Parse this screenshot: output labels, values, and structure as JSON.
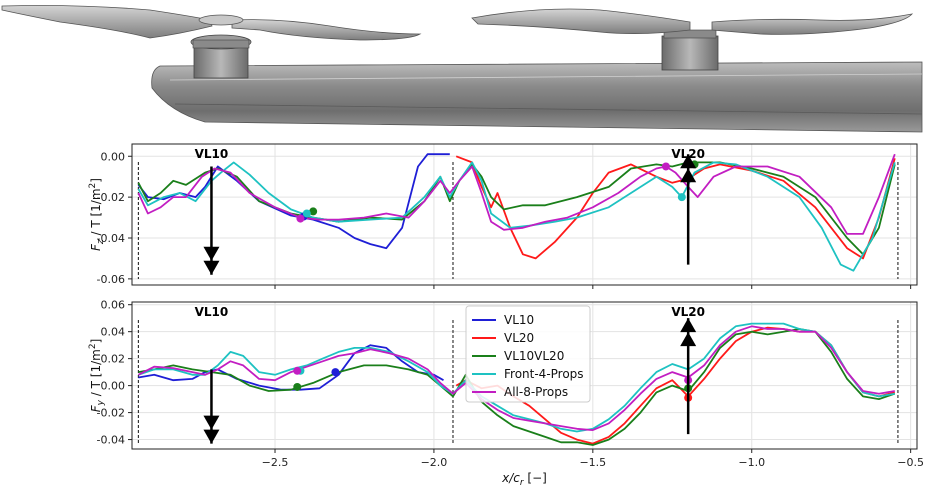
{
  "colors": {
    "VL10": "#1f1fd6",
    "VL20": "#ff1a1a",
    "VL10VL20": "#1a7f1a",
    "Front-4-Props": "#1ec2c2",
    "All-8-Props": "#c21ec2"
  },
  "icons": [
    "propeller-nacelle-render"
  ],
  "chart_data": [
    {
      "type": "line",
      "ylabel_var": "F",
      "ylabel_sub": "z",
      "ylabel_rest": " / T [1/m",
      "ylabel_sup": "2",
      "ylabel_end": "]",
      "ylim": [
        -0.063,
        0.006
      ],
      "xlim": [
        -2.95,
        -0.48
      ],
      "yticks": [
        "0.00",
        "-0.02",
        "-0.04",
        "-0.06"
      ],
      "ytick_values": [
        0.0,
        -0.02,
        -0.04,
        -0.06
      ],
      "grid": true,
      "annotations": [
        {
          "text": "VL10",
          "x": -2.7,
          "y": 0.0
        },
        {
          "text": "VL20",
          "x": -1.2,
          "y": 0.0
        }
      ],
      "series": [
        {
          "name": "VL10",
          "x": [
            -2.93,
            -2.9,
            -2.85,
            -2.8,
            -2.75,
            -2.72,
            -2.68,
            -2.62,
            -2.55,
            -2.45,
            -2.38,
            -2.3,
            -2.25,
            -2.2,
            -2.15,
            -2.1,
            -2.05,
            -2.02,
            -1.98,
            -1.95
          ],
          "y": [
            -0.014,
            -0.02,
            -0.021,
            -0.018,
            -0.02,
            -0.015,
            -0.005,
            -0.012,
            -0.022,
            -0.029,
            -0.031,
            -0.035,
            -0.04,
            -0.043,
            -0.045,
            -0.035,
            -0.005,
            0.001,
            0.001,
            0.001
          ]
        },
        {
          "name": "VL20",
          "x": [
            -1.93,
            -1.88,
            -1.85,
            -1.82,
            -1.8,
            -1.76,
            -1.72,
            -1.68,
            -1.62,
            -1.55,
            -1.5,
            -1.45,
            -1.38,
            -1.3,
            -1.25,
            -1.2,
            -1.15,
            -1.1,
            -1.0,
            -0.9,
            -0.8,
            -0.7,
            -0.65,
            -0.6,
            -0.55
          ],
          "y": [
            0.0,
            -0.003,
            -0.015,
            -0.025,
            -0.018,
            -0.035,
            -0.048,
            -0.05,
            -0.042,
            -0.03,
            -0.018,
            -0.008,
            -0.004,
            -0.01,
            -0.013,
            -0.011,
            -0.006,
            -0.004,
            -0.007,
            -0.012,
            -0.025,
            -0.045,
            -0.05,
            -0.03,
            -0.001
          ]
        },
        {
          "name": "VL10VL20",
          "x": [
            -2.93,
            -2.9,
            -2.86,
            -2.82,
            -2.78,
            -2.72,
            -2.68,
            -2.62,
            -2.55,
            -2.45,
            -2.38,
            -2.3,
            -2.2,
            -2.1,
            -2.03,
            -1.98,
            -1.95,
            -1.92,
            -1.88,
            -1.85,
            -1.82,
            -1.78,
            -1.72,
            -1.65,
            -1.55,
            -1.45,
            -1.38,
            -1.3,
            -1.25,
            -1.2,
            -1.15,
            -1.1,
            -1.0,
            -0.9,
            -0.8,
            -0.7,
            -0.65,
            -0.6,
            -0.55
          ],
          "y": [
            -0.013,
            -0.022,
            -0.018,
            -0.012,
            -0.014,
            -0.008,
            -0.006,
            -0.01,
            -0.022,
            -0.028,
            -0.03,
            -0.032,
            -0.03,
            -0.031,
            -0.022,
            -0.01,
            -0.022,
            -0.012,
            -0.004,
            -0.01,
            -0.02,
            -0.026,
            -0.024,
            -0.024,
            -0.02,
            -0.015,
            -0.006,
            -0.004,
            -0.005,
            -0.003,
            -0.003,
            -0.003,
            -0.006,
            -0.01,
            -0.02,
            -0.04,
            -0.048,
            -0.035,
            -0.004
          ]
        },
        {
          "name": "Front-4-Props",
          "x": [
            -2.93,
            -2.9,
            -2.85,
            -2.8,
            -2.75,
            -2.7,
            -2.67,
            -2.63,
            -2.58,
            -2.52,
            -2.45,
            -2.38,
            -2.3,
            -2.2,
            -2.1,
            -2.03,
            -1.98,
            -1.95,
            -1.92,
            -1.88,
            -1.85,
            -1.82,
            -1.76,
            -1.7,
            -1.62,
            -1.55,
            -1.45,
            -1.38,
            -1.3,
            -1.25,
            -1.22,
            -1.18,
            -1.12,
            -1.05,
            -0.95,
            -0.85,
            -0.78,
            -0.72,
            -0.68,
            -0.62,
            -0.55
          ],
          "y": [
            -0.016,
            -0.024,
            -0.02,
            -0.018,
            -0.022,
            -0.012,
            -0.008,
            -0.003,
            -0.009,
            -0.018,
            -0.026,
            -0.03,
            -0.032,
            -0.031,
            -0.03,
            -0.02,
            -0.01,
            -0.02,
            -0.012,
            -0.003,
            -0.012,
            -0.028,
            -0.035,
            -0.034,
            -0.032,
            -0.03,
            -0.025,
            -0.018,
            -0.01,
            -0.015,
            -0.02,
            -0.008,
            -0.003,
            -0.004,
            -0.01,
            -0.02,
            -0.035,
            -0.053,
            -0.056,
            -0.04,
            -0.003
          ]
        },
        {
          "name": "All-8-Props",
          "x": [
            -2.93,
            -2.9,
            -2.86,
            -2.82,
            -2.78,
            -2.73,
            -2.69,
            -2.64,
            -2.58,
            -2.5,
            -2.42,
            -2.36,
            -2.3,
            -2.22,
            -2.15,
            -2.08,
            -2.03,
            -1.98,
            -1.95,
            -1.92,
            -1.88,
            -1.85,
            -1.82,
            -1.78,
            -1.72,
            -1.65,
            -1.58,
            -1.5,
            -1.42,
            -1.35,
            -1.3,
            -1.27,
            -1.24,
            -1.2,
            -1.17,
            -1.12,
            -1.05,
            -0.95,
            -0.85,
            -0.75,
            -0.7,
            -0.65,
            -0.6,
            -0.55
          ],
          "y": [
            -0.018,
            -0.028,
            -0.025,
            -0.02,
            -0.02,
            -0.01,
            -0.006,
            -0.008,
            -0.018,
            -0.025,
            -0.03,
            -0.031,
            -0.031,
            -0.03,
            -0.028,
            -0.03,
            -0.022,
            -0.012,
            -0.018,
            -0.012,
            -0.005,
            -0.018,
            -0.032,
            -0.036,
            -0.035,
            -0.032,
            -0.03,
            -0.025,
            -0.018,
            -0.01,
            -0.006,
            -0.005,
            -0.008,
            -0.015,
            -0.02,
            -0.01,
            -0.005,
            -0.005,
            -0.01,
            -0.025,
            -0.038,
            -0.038,
            -0.02,
            0.001
          ]
        }
      ],
      "markers": [
        {
          "series": "VL10",
          "x": -2.41,
          "y": -0.0295
        },
        {
          "series": "VL10VL20",
          "x": -2.38,
          "y": -0.027
        },
        {
          "series": "Front-4-Props",
          "x": -2.4,
          "y": -0.028
        },
        {
          "series": "All-8-Props",
          "x": -2.42,
          "y": -0.0305
        },
        {
          "series": "VL20",
          "x": -1.2,
          "y": -0.011
        },
        {
          "series": "VL10VL20",
          "x": -1.18,
          "y": -0.004
        },
        {
          "series": "Front-4-Props",
          "x": -1.22,
          "y": -0.02
        },
        {
          "series": "All-8-Props",
          "x": -1.27,
          "y": -0.005
        }
      ],
      "arrows": [
        {
          "x": -2.7,
          "y_start": -0.005,
          "y_end": -0.058,
          "direction": "down"
        },
        {
          "x": -1.2,
          "y_start": -0.053,
          "y_end": 0.001,
          "direction": "up"
        }
      ],
      "dashed_x": [
        -2.93,
        -1.94,
        -0.54
      ]
    },
    {
      "type": "line",
      "ylabel_var": "F",
      "ylabel_sub": "y",
      "ylabel_rest": " / T [1/m",
      "ylabel_sup": "2",
      "ylabel_end": "]",
      "xlabel_var": "x/c",
      "xlabel_sub": "r",
      "xlabel_rest": " [−]",
      "ylim": [
        -0.047,
        0.062
      ],
      "xlim": [
        -2.95,
        -0.48
      ],
      "yticks": [
        "0.06",
        "0.04",
        "0.02",
        "0.00",
        "-0.02",
        "-0.04"
      ],
      "ytick_values": [
        0.06,
        0.04,
        0.02,
        0.0,
        -0.02,
        -0.04
      ],
      "xticks": [
        "−2.5",
        "−2.0",
        "−1.5",
        "−1.0",
        "−0.5"
      ],
      "xtick_values": [
        -2.5,
        -2.0,
        -1.5,
        -1.0,
        -0.5
      ],
      "grid": true,
      "legend": "center",
      "annotations": [
        {
          "text": "VL10",
          "x": -2.7,
          "y": 0.0
        },
        {
          "text": "VL20",
          "x": -1.2,
          "y": 0.0
        }
      ],
      "series": [
        {
          "name": "VL10",
          "x": [
            -2.93,
            -2.88,
            -2.82,
            -2.76,
            -2.72,
            -2.68,
            -2.62,
            -2.55,
            -2.48,
            -2.42,
            -2.36,
            -2.3,
            -2.25,
            -2.2,
            -2.15,
            -2.1,
            -2.05,
            -2.0,
            -1.97
          ],
          "y": [
            0.006,
            0.008,
            0.004,
            0.005,
            0.01,
            0.012,
            0.005,
            0.0,
            -0.003,
            -0.003,
            -0.002,
            0.008,
            0.024,
            0.03,
            0.028,
            0.018,
            0.01,
            0.008,
            0.004
          ]
        },
        {
          "name": "VL20",
          "x": [
            -1.93,
            -1.9,
            -1.85,
            -1.8,
            -1.75,
            -1.7,
            -1.65,
            -1.6,
            -1.55,
            -1.5,
            -1.45,
            -1.4,
            -1.35,
            -1.3,
            -1.25,
            -1.2,
            -1.15,
            -1.1,
            -1.05,
            -1.0,
            -0.95,
            -0.9,
            -0.85,
            -0.8,
            -0.75,
            -0.7,
            -0.65,
            -0.6,
            -0.55
          ],
          "y": [
            0.0,
            0.004,
            -0.002,
            0.0,
            -0.008,
            -0.015,
            -0.025,
            -0.035,
            -0.04,
            -0.043,
            -0.038,
            -0.028,
            -0.015,
            -0.002,
            0.004,
            -0.008,
            0.005,
            0.02,
            0.033,
            0.04,
            0.043,
            0.042,
            0.04,
            0.04,
            0.03,
            0.01,
            -0.005,
            -0.008,
            -0.005
          ]
        },
        {
          "name": "VL10VL20",
          "x": [
            -2.93,
            -2.88,
            -2.82,
            -2.76,
            -2.7,
            -2.64,
            -2.58,
            -2.52,
            -2.45,
            -2.38,
            -2.3,
            -2.22,
            -2.15,
            -2.08,
            -2.02,
            -1.98,
            -1.94,
            -1.9,
            -1.85,
            -1.8,
            -1.75,
            -1.7,
            -1.65,
            -1.6,
            -1.55,
            -1.5,
            -1.45,
            -1.4,
            -1.35,
            -1.3,
            -1.25,
            -1.2,
            -1.15,
            -1.1,
            -1.05,
            -1.0,
            -0.95,
            -0.9,
            -0.85,
            -0.8,
            -0.75,
            -0.7,
            -0.65,
            -0.6,
            -0.55
          ],
          "y": [
            0.01,
            0.012,
            0.015,
            0.012,
            0.01,
            0.008,
            0.0,
            -0.004,
            -0.003,
            0.002,
            0.01,
            0.015,
            0.015,
            0.012,
            0.008,
            0.0,
            -0.008,
            0.008,
            -0.012,
            -0.022,
            -0.03,
            -0.034,
            -0.038,
            -0.042,
            -0.042,
            -0.044,
            -0.04,
            -0.032,
            -0.02,
            -0.005,
            0.0,
            -0.004,
            0.01,
            0.028,
            0.038,
            0.04,
            0.038,
            0.04,
            0.042,
            0.04,
            0.025,
            0.005,
            -0.008,
            -0.01,
            -0.006
          ]
        },
        {
          "name": "Front-4-Props",
          "x": [
            -2.93,
            -2.88,
            -2.82,
            -2.76,
            -2.72,
            -2.68,
            -2.64,
            -2.6,
            -2.55,
            -2.5,
            -2.45,
            -2.4,
            -2.35,
            -2.3,
            -2.25,
            -2.2,
            -2.14,
            -2.08,
            -2.02,
            -1.98,
            -1.94,
            -1.9,
            -1.85,
            -1.8,
            -1.75,
            -1.7,
            -1.65,
            -1.6,
            -1.55,
            -1.5,
            -1.45,
            -1.4,
            -1.35,
            -1.3,
            -1.25,
            -1.2,
            -1.15,
            -1.1,
            -1.05,
            -1.0,
            -0.95,
            -0.9,
            -0.85,
            -0.8,
            -0.75,
            -0.7,
            -0.65,
            -0.6,
            -0.55
          ],
          "y": [
            0.008,
            0.012,
            0.012,
            0.008,
            0.008,
            0.015,
            0.025,
            0.022,
            0.01,
            0.008,
            0.012,
            0.015,
            0.02,
            0.025,
            0.028,
            0.028,
            0.025,
            0.018,
            0.01,
            0.0,
            -0.006,
            0.004,
            -0.008,
            -0.015,
            -0.022,
            -0.025,
            -0.028,
            -0.032,
            -0.034,
            -0.032,
            -0.025,
            -0.015,
            -0.002,
            0.01,
            0.016,
            0.012,
            0.02,
            0.035,
            0.044,
            0.046,
            0.046,
            0.046,
            0.042,
            0.04,
            0.03,
            0.01,
            -0.005,
            -0.008,
            -0.006
          ]
        },
        {
          "name": "All-8-Props",
          "x": [
            -2.93,
            -2.88,
            -2.82,
            -2.76,
            -2.72,
            -2.68,
            -2.64,
            -2.6,
            -2.55,
            -2.5,
            -2.45,
            -2.4,
            -2.35,
            -2.3,
            -2.25,
            -2.2,
            -2.14,
            -2.08,
            -2.02,
            -1.98,
            -1.94,
            -1.9,
            -1.85,
            -1.8,
            -1.75,
            -1.7,
            -1.65,
            -1.6,
            -1.55,
            -1.5,
            -1.45,
            -1.4,
            -1.35,
            -1.3,
            -1.25,
            -1.2,
            -1.15,
            -1.1,
            -1.05,
            -1.0,
            -0.95,
            -0.9,
            -0.85,
            -0.8,
            -0.75,
            -0.7,
            -0.65,
            -0.6,
            -0.55
          ],
          "y": [
            0.008,
            0.014,
            0.013,
            0.01,
            0.008,
            0.012,
            0.018,
            0.015,
            0.005,
            0.004,
            0.01,
            0.014,
            0.018,
            0.022,
            0.024,
            0.027,
            0.024,
            0.02,
            0.012,
            0.002,
            -0.006,
            0.002,
            -0.01,
            -0.018,
            -0.024,
            -0.026,
            -0.028,
            -0.03,
            -0.032,
            -0.033,
            -0.028,
            -0.018,
            -0.006,
            0.005,
            0.01,
            0.006,
            0.015,
            0.03,
            0.04,
            0.044,
            0.042,
            0.042,
            0.04,
            0.04,
            0.028,
            0.01,
            -0.004,
            -0.006,
            -0.004
          ]
        }
      ],
      "markers": [
        {
          "series": "VL10",
          "x": -2.31,
          "y": 0.01
        },
        {
          "series": "VL10VL20",
          "x": -2.43,
          "y": -0.001
        },
        {
          "series": "Front-4-Props",
          "x": -2.42,
          "y": 0.011
        },
        {
          "series": "All-8-Props",
          "x": -2.43,
          "y": 0.011
        },
        {
          "series": "VL20",
          "x": -1.2,
          "y": -0.009
        },
        {
          "series": "VL10VL20",
          "x": -1.2,
          "y": -0.002
        },
        {
          "series": "All-8-Props",
          "x": -1.2,
          "y": 0.004
        }
      ],
      "arrows": [
        {
          "x": -2.7,
          "y_start": 0.012,
          "y_end": -0.043,
          "direction": "down"
        },
        {
          "x": -1.2,
          "y_start": -0.036,
          "y_end": 0.05,
          "direction": "up"
        }
      ],
      "dashed_x": [
        -2.93,
        -1.94,
        -0.54
      ]
    }
  ]
}
